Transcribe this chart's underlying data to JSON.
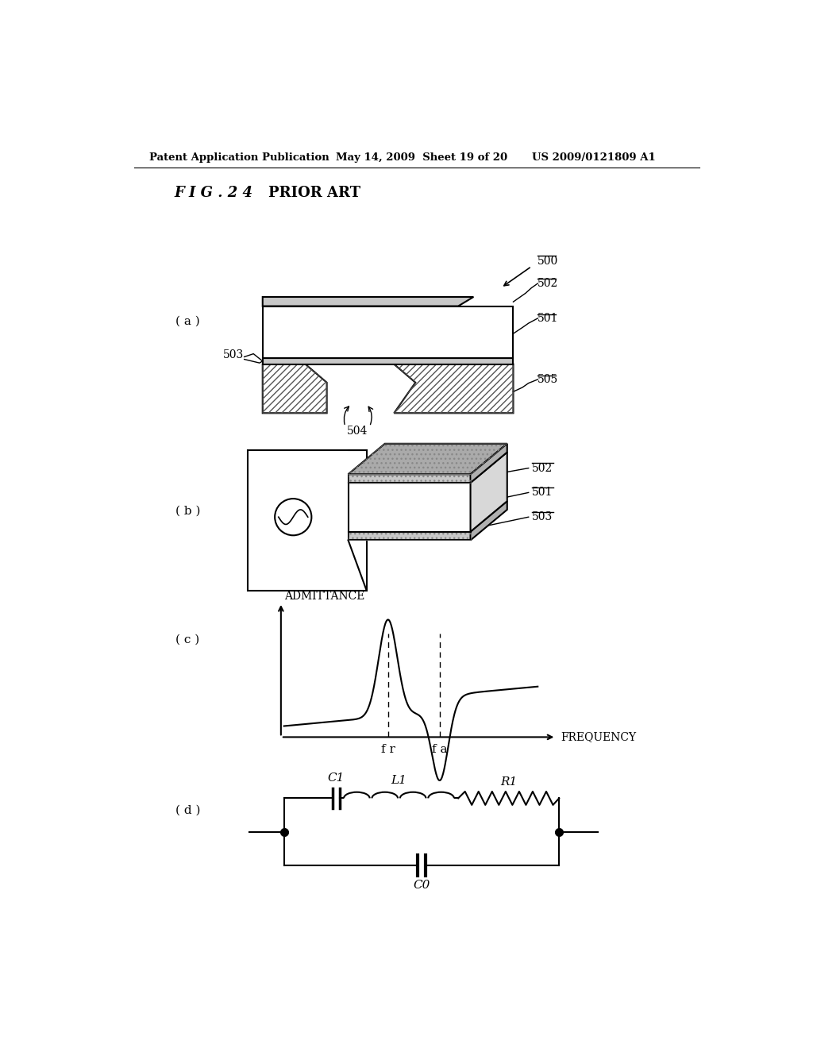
{
  "title_header": "Patent Application Publication",
  "date_header": "May 14, 2009  Sheet 19 of 20",
  "patent_header": "US 2009/0121809 A1",
  "fig_label": "F I G . 2 4",
  "prior_art": "PRIOR ART",
  "label_a": "( a )",
  "label_b": "( b )",
  "label_c": "( c )",
  "label_d": "( d )",
  "ref_500": "500",
  "ref_501": "501",
  "ref_502": "502",
  "ref_503": "503",
  "ref_504": "504",
  "ref_505": "505",
  "admittance_label": "ADMITTANCE",
  "frequency_label": "FREQUENCY",
  "fr_label": "f r",
  "fa_label": "f a",
  "c1_label": "C1",
  "l1_label": "L1",
  "r1_label": "R1",
  "c0_label": "C0",
  "bg_color": "#ffffff",
  "line_color": "#000000"
}
